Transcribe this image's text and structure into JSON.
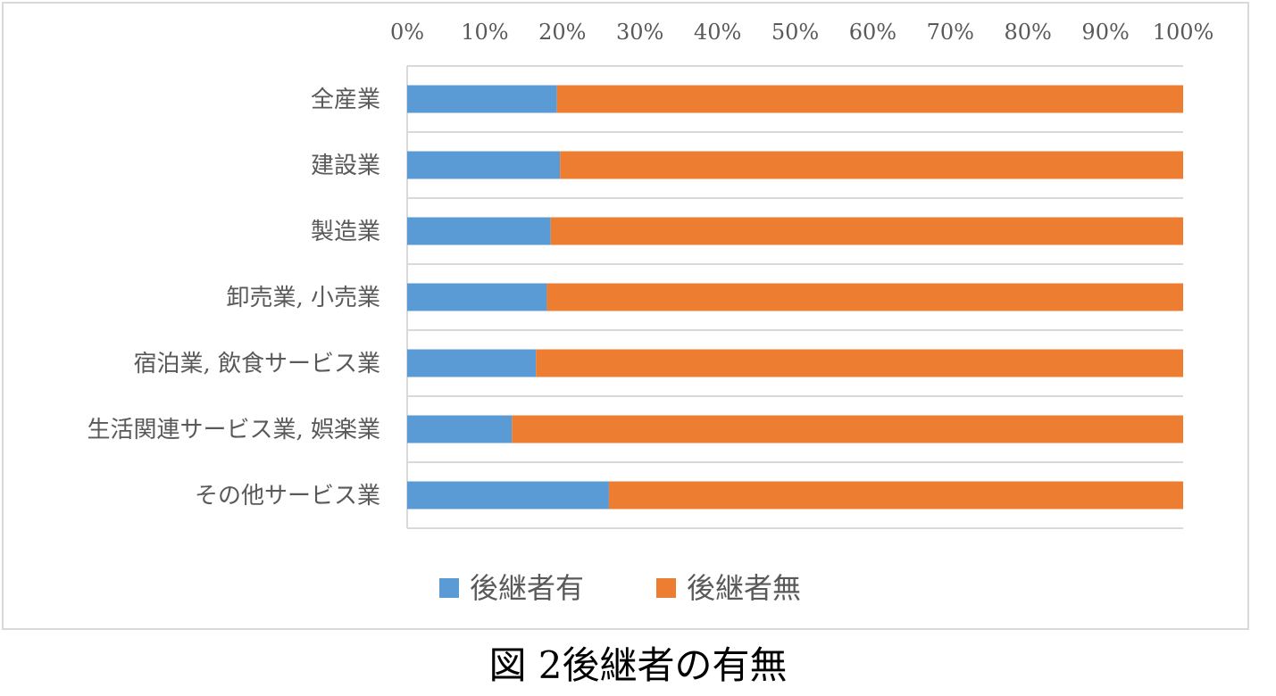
{
  "caption": "図 2後継者の有無",
  "colors": {
    "series_1": "#5b9bd5",
    "series_2": "#ed7d31",
    "gridline": "#d9d9d9",
    "text": "#595959"
  },
  "chart_data": {
    "type": "bar",
    "orientation": "horizontal",
    "stacked": "percent",
    "categories": [
      "全産業",
      "建設業",
      "製造業",
      "卸売業, 小売業",
      "宿泊業, 飲食サービス業",
      "生活関連サービス業, 娯楽業",
      "その他サービス業"
    ],
    "series": [
      {
        "name": "後継者有",
        "values": [
          19.3,
          19.7,
          18.5,
          18.0,
          16.6,
          13.5,
          26.0
        ]
      },
      {
        "name": "後継者無",
        "values": [
          80.7,
          80.3,
          81.5,
          82.0,
          83.4,
          86.5,
          74.0
        ]
      }
    ],
    "x_ticks": [
      "0%",
      "10%",
      "20%",
      "30%",
      "40%",
      "50%",
      "60%",
      "70%",
      "80%",
      "90%",
      "100%"
    ],
    "xlim": [
      0,
      100
    ],
    "x_axis_position": "top",
    "grid": true,
    "legend": "bottom"
  }
}
